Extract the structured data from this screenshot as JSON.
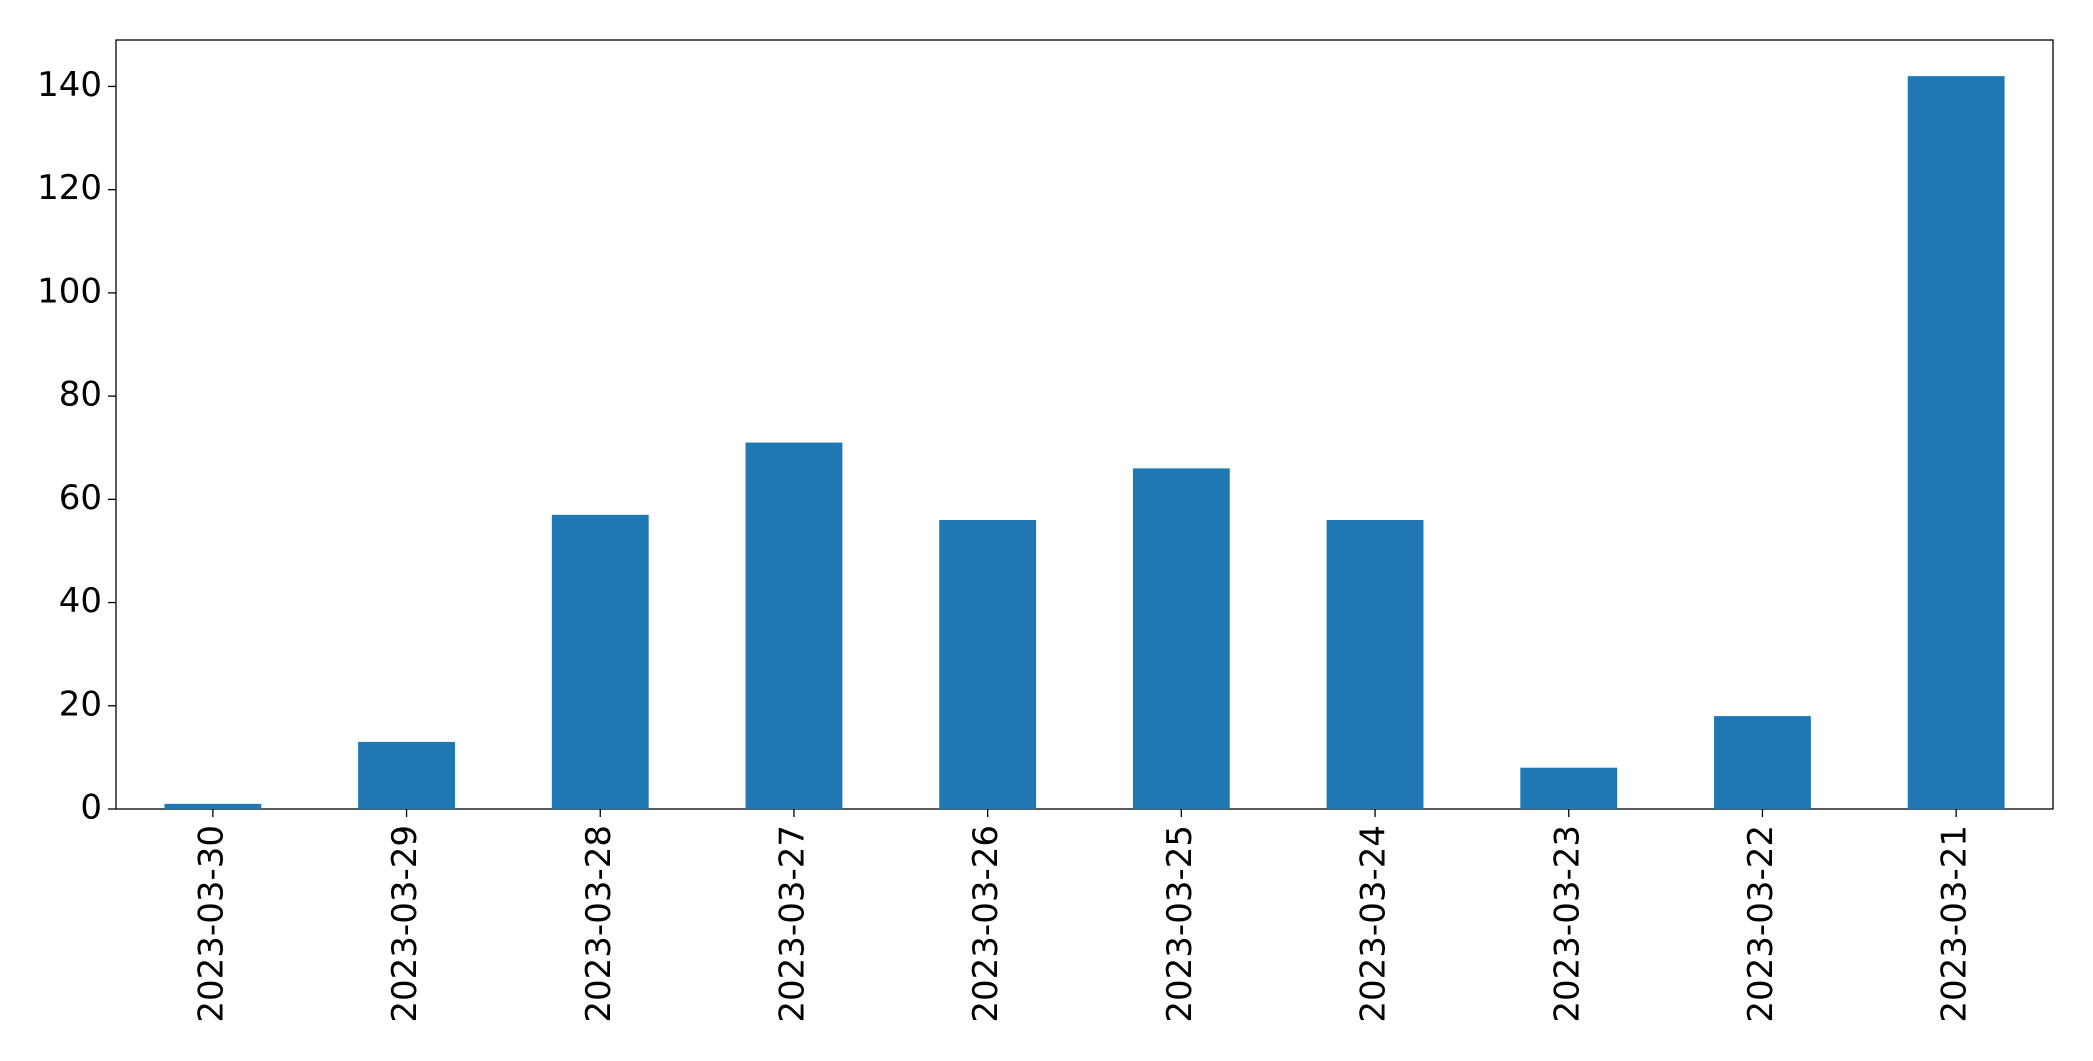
{
  "chart_data": {
    "type": "bar",
    "categories": [
      "2023-03-30",
      "2023-03-29",
      "2023-03-28",
      "2023-03-27",
      "2023-03-26",
      "2023-03-25",
      "2023-03-24",
      "2023-03-23",
      "2023-03-22",
      "2023-03-21"
    ],
    "values": [
      1,
      13,
      57,
      71,
      56,
      66,
      56,
      8,
      18,
      142
    ],
    "color": "#1f77b4",
    "ylim": [
      0,
      149
    ],
    "yticks": [
      0,
      20,
      40,
      60,
      80,
      100,
      120,
      140
    ],
    "grid": false
  }
}
